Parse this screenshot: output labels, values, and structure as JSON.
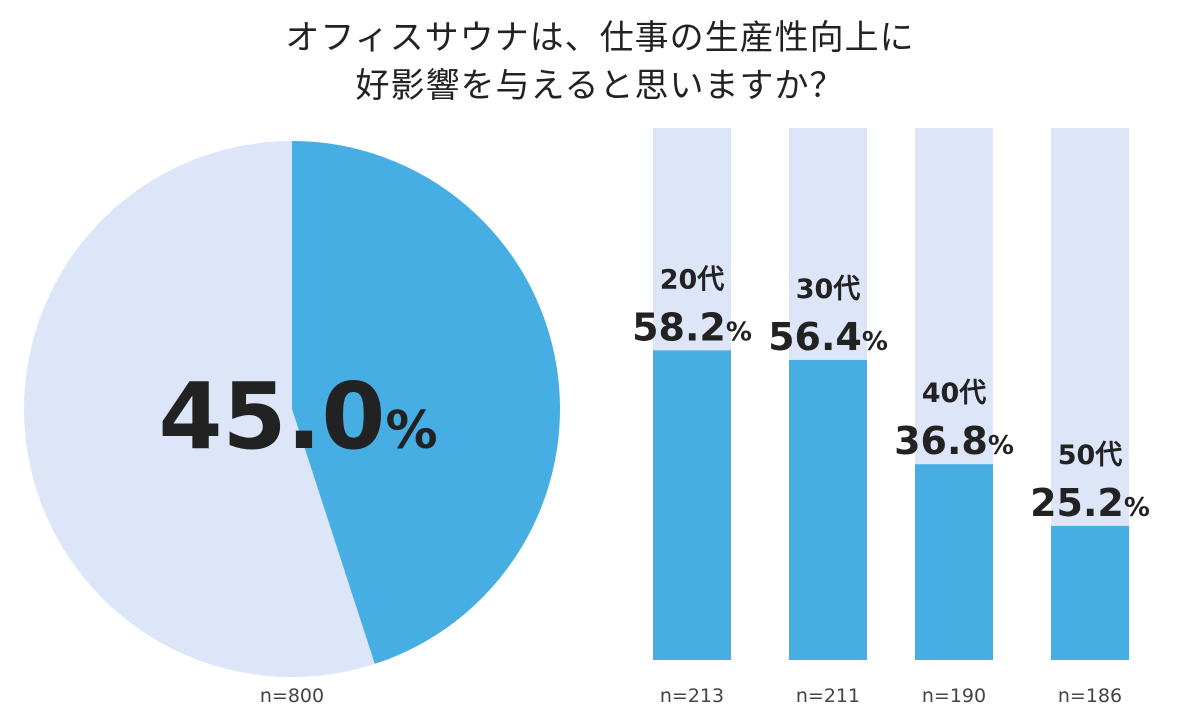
{
  "chart_data": [
    {
      "type": "pie",
      "title": "オフィスサウナは、仕事の生産性向上に好影響を与えると思いますか？",
      "title_lines": [
        "オフィスサウナは、仕事の生産性向上に",
        "好影響を与えると思いますか？"
      ],
      "value": 45.0,
      "value_label": "45.0",
      "unit": "%",
      "n_label": "n=800",
      "colors": {
        "highlight": "#47aee3",
        "remainder": "#dde5f8"
      }
    },
    {
      "type": "bar",
      "categories": [
        "20代",
        "30代",
        "40代",
        "50代"
      ],
      "values": [
        58.2,
        56.4,
        36.8,
        25.2
      ],
      "value_labels": [
        "58.2",
        "56.4",
        "36.8",
        "25.2"
      ],
      "unit": "%",
      "n_labels": [
        "n=213",
        "n=211",
        "n=190",
        "n=186"
      ],
      "ylim": [
        0,
        100
      ],
      "colors": {
        "bar": "#47aee3",
        "track": "#dde5f8"
      }
    }
  ]
}
